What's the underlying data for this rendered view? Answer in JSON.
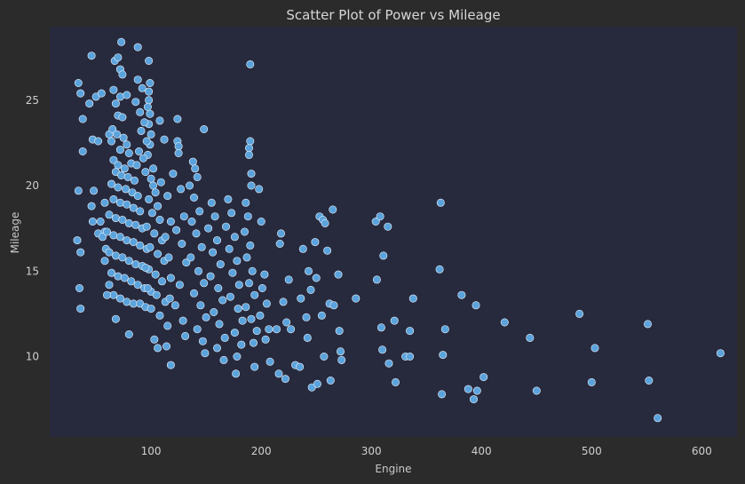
{
  "colors": {
    "figure_background": "#2b2b2b",
    "plot_background": "#27293d",
    "point_fill": "#5ba3dc",
    "point_edge": "#eaf2fa",
    "text": "#d0d0d0"
  },
  "chart_data": {
    "type": "scatter",
    "title": "Scatter Plot of Power vs Mileage",
    "xlabel": "Engine",
    "ylabel": "Mileage",
    "xlim": [
      8,
      632
    ],
    "ylim": [
      5.3,
      29.3
    ],
    "xticks": [
      100,
      200,
      300,
      400,
      500,
      600
    ],
    "yticks": [
      10,
      15,
      20,
      25
    ],
    "grid": false,
    "legend": "none",
    "points": [
      [
        34,
        26.0
      ],
      [
        36,
        25.4
      ],
      [
        38,
        23.9
      ],
      [
        34,
        19.7
      ],
      [
        38,
        22.0
      ],
      [
        36,
        16.1
      ],
      [
        35,
        14.0
      ],
      [
        36,
        12.8
      ],
      [
        33,
        16.8
      ],
      [
        46,
        27.6
      ],
      [
        50,
        25.2
      ],
      [
        55,
        25.4
      ],
      [
        44,
        24.8
      ],
      [
        47,
        22.7
      ],
      [
        52,
        22.6
      ],
      [
        48,
        19.7
      ],
      [
        47,
        17.9
      ],
      [
        54,
        17.9
      ],
      [
        52,
        17.2
      ],
      [
        58,
        17.3
      ],
      [
        56,
        17.0
      ],
      [
        59,
        16.3
      ],
      [
        46,
        18.8
      ],
      [
        58,
        19.0
      ],
      [
        62,
        23.0
      ],
      [
        64,
        22.6
      ],
      [
        67,
        27.3
      ],
      [
        70,
        27.5
      ],
      [
        73,
        28.4
      ],
      [
        72,
        26.8
      ],
      [
        74,
        26.5
      ],
      [
        66,
        25.6
      ],
      [
        72,
        25.2
      ],
      [
        78,
        25.3
      ],
      [
        68,
        24.8
      ],
      [
        70,
        24.1
      ],
      [
        74,
        24.0
      ],
      [
        65,
        23.3
      ],
      [
        69,
        23.0
      ],
      [
        75,
        22.8
      ],
      [
        78,
        22.4
      ],
      [
        72,
        22.1
      ],
      [
        80,
        21.9
      ],
      [
        66,
        21.5
      ],
      [
        70,
        21.2
      ],
      [
        76,
        21.0
      ],
      [
        82,
        21.3
      ],
      [
        68,
        20.8
      ],
      [
        73,
        20.6
      ],
      [
        79,
        20.5
      ],
      [
        85,
        20.3
      ],
      [
        64,
        20.1
      ],
      [
        70,
        19.9
      ],
      [
        77,
        19.8
      ],
      [
        83,
        19.6
      ],
      [
        88,
        19.4
      ],
      [
        66,
        19.2
      ],
      [
        72,
        19.0
      ],
      [
        78,
        18.9
      ],
      [
        84,
        18.7
      ],
      [
        90,
        18.5
      ],
      [
        62,
        18.3
      ],
      [
        68,
        18.1
      ],
      [
        74,
        18.0
      ],
      [
        80,
        17.8
      ],
      [
        86,
        17.7
      ],
      [
        92,
        17.5
      ],
      [
        60,
        17.3
      ],
      [
        66,
        17.1
      ],
      [
        72,
        17.0
      ],
      [
        78,
        16.8
      ],
      [
        84,
        16.7
      ],
      [
        90,
        16.5
      ],
      [
        96,
        16.3
      ],
      [
        62,
        16.1
      ],
      [
        68,
        15.9
      ],
      [
        74,
        15.8
      ],
      [
        80,
        15.6
      ],
      [
        86,
        15.4
      ],
      [
        92,
        15.3
      ],
      [
        98,
        15.1
      ],
      [
        64,
        14.9
      ],
      [
        70,
        14.7
      ],
      [
        76,
        14.6
      ],
      [
        82,
        14.4
      ],
      [
        88,
        14.2
      ],
      [
        94,
        14.0
      ],
      [
        100,
        13.8
      ],
      [
        66,
        13.6
      ],
      [
        72,
        13.4
      ],
      [
        78,
        13.2
      ],
      [
        84,
        13.1
      ],
      [
        60,
        13.6
      ],
      [
        58,
        15.6
      ],
      [
        62,
        14.2
      ],
      [
        68,
        12.2
      ],
      [
        80,
        11.3
      ],
      [
        90,
        13.1
      ],
      [
        95,
        12.9
      ],
      [
        88,
        28.1
      ],
      [
        98,
        27.3
      ],
      [
        99,
        26.0
      ],
      [
        98,
        25.5
      ],
      [
        98,
        25.0
      ],
      [
        97,
        24.6
      ],
      [
        99,
        24.2
      ],
      [
        98,
        23.6
      ],
      [
        100,
        23.0
      ],
      [
        99,
        22.4
      ],
      [
        97,
        21.8
      ],
      [
        88,
        26.2
      ],
      [
        92,
        25.7
      ],
      [
        86,
        24.9
      ],
      [
        90,
        24.3
      ],
      [
        94,
        23.7
      ],
      [
        91,
        23.2
      ],
      [
        96,
        22.6
      ],
      [
        89,
        22.0
      ],
      [
        93,
        21.6
      ],
      [
        87,
        21.2
      ],
      [
        95,
        20.8
      ],
      [
        100,
        20.4
      ],
      [
        102,
        20.0
      ],
      [
        104,
        19.6
      ],
      [
        98,
        19.2
      ],
      [
        106,
        18.8
      ],
      [
        101,
        18.4
      ],
      [
        108,
        18.0
      ],
      [
        96,
        17.6
      ],
      [
        103,
        17.2
      ],
      [
        110,
        16.8
      ],
      [
        99,
        16.4
      ],
      [
        106,
        16.0
      ],
      [
        112,
        15.6
      ],
      [
        95,
        15.2
      ],
      [
        104,
        14.8
      ],
      [
        110,
        14.4
      ],
      [
        97,
        14.0
      ],
      [
        105,
        13.6
      ],
      [
        113,
        13.2
      ],
      [
        100,
        12.8
      ],
      [
        108,
        12.4
      ],
      [
        115,
        11.8
      ],
      [
        103,
        11.0
      ],
      [
        106,
        10.5
      ],
      [
        112,
        22.7
      ],
      [
        108,
        23.8
      ],
      [
        102,
        21.0
      ],
      [
        109,
        20.2
      ],
      [
        115,
        19.4
      ],
      [
        118,
        17.9
      ],
      [
        113,
        17.0
      ],
      [
        116,
        15.8
      ],
      [
        118,
        14.6
      ],
      [
        117,
        13.4
      ],
      [
        118,
        9.5
      ],
      [
        114,
        10.6
      ],
      [
        124,
        23.9
      ],
      [
        124,
        22.6
      ],
      [
        125,
        22.3
      ],
      [
        125,
        21.9
      ],
      [
        120,
        20.7
      ],
      [
        127,
        19.8
      ],
      [
        130,
        18.2
      ],
      [
        123,
        17.4
      ],
      [
        128,
        16.6
      ],
      [
        132,
        15.5
      ],
      [
        126,
        14.2
      ],
      [
        122,
        13.0
      ],
      [
        129,
        12.1
      ],
      [
        131,
        11.2
      ],
      [
        138,
        21.4
      ],
      [
        140,
        21.0
      ],
      [
        142,
        20.5
      ],
      [
        135,
        20.0
      ],
      [
        139,
        19.3
      ],
      [
        144,
        18.5
      ],
      [
        137,
        17.9
      ],
      [
        141,
        17.2
      ],
      [
        146,
        16.4
      ],
      [
        136,
        15.8
      ],
      [
        143,
        15.0
      ],
      [
        148,
        14.3
      ],
      [
        139,
        13.7
      ],
      [
        145,
        13.0
      ],
      [
        150,
        12.3
      ],
      [
        142,
        11.6
      ],
      [
        147,
        10.9
      ],
      [
        149,
        10.2
      ],
      [
        148,
        23.3
      ],
      [
        155,
        19.0
      ],
      [
        158,
        18.2
      ],
      [
        152,
        17.5
      ],
      [
        160,
        16.8
      ],
      [
        156,
        16.1
      ],
      [
        163,
        15.4
      ],
      [
        154,
        14.7
      ],
      [
        161,
        14.0
      ],
      [
        165,
        13.3
      ],
      [
        157,
        12.6
      ],
      [
        162,
        11.9
      ],
      [
        167,
        11.1
      ],
      [
        160,
        10.5
      ],
      [
        166,
        9.8
      ],
      [
        170,
        19.2
      ],
      [
        173,
        18.4
      ],
      [
        168,
        17.6
      ],
      [
        176,
        17.0
      ],
      [
        171,
        16.3
      ],
      [
        178,
        15.6
      ],
      [
        174,
        14.9
      ],
      [
        180,
        14.2
      ],
      [
        172,
        13.5
      ],
      [
        179,
        12.8
      ],
      [
        183,
        12.1
      ],
      [
        176,
        11.4
      ],
      [
        182,
        10.7
      ],
      [
        178,
        10.0
      ],
      [
        177,
        9.0
      ],
      [
        186,
        19.0
      ],
      [
        188,
        18.2
      ],
      [
        185,
        17.3
      ],
      [
        190,
        16.5
      ],
      [
        187,
        15.8
      ],
      [
        192,
        15.0
      ],
      [
        189,
        14.3
      ],
      [
        194,
        13.6
      ],
      [
        186,
        12.9
      ],
      [
        191,
        12.2
      ],
      [
        196,
        11.5
      ],
      [
        193,
        10.8
      ],
      [
        190,
        27.1
      ],
      [
        190,
        22.6
      ],
      [
        189,
        22.2
      ],
      [
        189,
        21.8
      ],
      [
        191,
        20.7
      ],
      [
        191,
        20.0
      ],
      [
        198,
        19.8
      ],
      [
        200,
        17.9
      ],
      [
        203,
        14.8
      ],
      [
        201,
        14.0
      ],
      [
        205,
        13.1
      ],
      [
        199,
        12.4
      ],
      [
        207,
        11.6
      ],
      [
        204,
        11.0
      ],
      [
        194,
        9.4
      ],
      [
        208,
        9.7
      ],
      [
        214,
        11.6
      ],
      [
        218,
        17.2
      ],
      [
        217,
        16.6
      ],
      [
        220,
        13.2
      ],
      [
        225,
        14.5
      ],
      [
        223,
        12.0
      ],
      [
        216,
        9.0
      ],
      [
        222,
        8.7
      ],
      [
        227,
        11.6
      ],
      [
        231,
        9.5
      ],
      [
        235,
        9.4
      ],
      [
        238,
        16.3
      ],
      [
        236,
        13.4
      ],
      [
        241,
        12.3
      ],
      [
        243,
        15.0
      ],
      [
        245,
        13.9
      ],
      [
        242,
        11.1
      ],
      [
        246,
        8.2
      ],
      [
        249,
        16.7
      ],
      [
        250,
        14.6
      ],
      [
        253,
        18.2
      ],
      [
        251,
        8.4
      ],
      [
        256,
        18.0
      ],
      [
        255,
        12.4
      ],
      [
        257,
        10.0
      ],
      [
        258,
        17.8
      ],
      [
        260,
        16.2
      ],
      [
        262,
        13.1
      ],
      [
        263,
        8.6
      ],
      [
        265,
        18.6
      ],
      [
        266,
        13.0
      ],
      [
        270,
        14.8
      ],
      [
        271,
        11.5
      ],
      [
        272,
        10.3
      ],
      [
        273,
        9.8
      ],
      [
        286,
        13.4
      ],
      [
        304,
        17.9
      ],
      [
        305,
        14.5
      ],
      [
        308,
        18.2
      ],
      [
        309,
        11.7
      ],
      [
        310,
        10.4
      ],
      [
        311,
        15.9
      ],
      [
        315,
        17.6
      ],
      [
        316,
        9.6
      ],
      [
        321,
        12.1
      ],
      [
        322,
        8.5
      ],
      [
        331,
        10.0
      ],
      [
        335,
        10.0
      ],
      [
        335,
        11.5
      ],
      [
        338,
        13.4
      ],
      [
        362,
        15.1
      ],
      [
        363,
        19.0
      ],
      [
        364,
        7.8
      ],
      [
        365,
        10.1
      ],
      [
        367,
        11.6
      ],
      [
        382,
        13.6
      ],
      [
        388,
        8.1
      ],
      [
        393,
        7.5
      ],
      [
        395,
        13.0
      ],
      [
        396,
        8.0
      ],
      [
        402,
        8.8
      ],
      [
        421,
        12.0
      ],
      [
        444,
        11.1
      ],
      [
        450,
        8.0
      ],
      [
        489,
        12.5
      ],
      [
        500,
        8.5
      ],
      [
        503,
        10.5
      ],
      [
        551,
        11.9
      ],
      [
        552,
        8.6
      ],
      [
        560,
        6.4
      ],
      [
        617,
        10.2
      ]
    ]
  }
}
